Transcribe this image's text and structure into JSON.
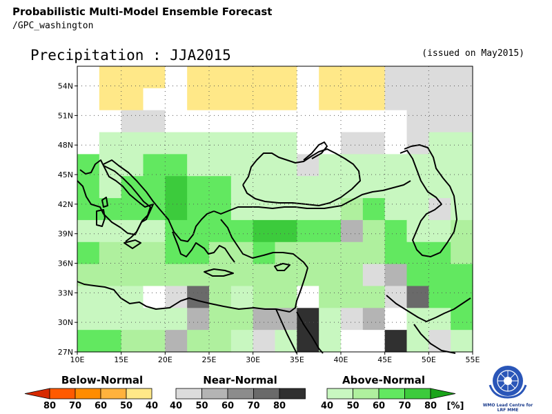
{
  "header": {
    "title": "Probabilistic Multi-Model Ensemble Forecast",
    "subtitle": "/GPC_washington"
  },
  "map": {
    "title": "Precipitation : JJA2015",
    "issued": "(issued on May2015)",
    "lon_min": 10,
    "lon_max": 55,
    "lat_min": 27,
    "lat_max": 56,
    "lon_ticks": [
      "10E",
      "15E",
      "20E",
      "25E",
      "30E",
      "35E",
      "40E",
      "45E",
      "50E",
      "55E"
    ],
    "lat_ticks": [
      "54N",
      "51N",
      "48N",
      "45N",
      "42N",
      "39N",
      "36N",
      "33N",
      "30N",
      "27N"
    ],
    "cell_cols": 18,
    "cell_rows": 13,
    "palette": {
      "0": "#ffffff",
      "Y": "#ffe888",
      "N": "#dcdcdc",
      "n": "#b4b4b4",
      "d": "#6a6a6a",
      "k": "#303030",
      "a": "#c8f7c0",
      "b": "#aff09e",
      "c": "#62e860",
      "e": "#3ccb3c"
    },
    "grid": [
      "0YYY0YYYYY0YYYNNNN",
      "0YY00YYYYY0YYYNNNN",
      "00NN00000000000NNN",
      "0aaaaaaaaa00NN0Naa",
      "caaccaaaaaNaaaaaaa",
      "cacceccaaaaaaaaaaa",
      "cccceccaaaaabcaaNa",
      "aaaacccceeccnbcaab",
      "cbbbccbbcbbbbbcccb",
      "bbbbbbbbbbbbbNnccc",
      "aaa0Ndbabb0bbbNdcc",
      "aaaaanbbnnkaNn0aac",
      "ccbbnbbaNaka00kaNa"
    ],
    "legend": {
      "below_title": "Below-Normal",
      "near_title": "Near-Normal",
      "above_title": "Above-Normal",
      "below_labels": [
        "80",
        "70",
        "60",
        "50",
        "40"
      ],
      "near_labels": [
        "40",
        "50",
        "60",
        "70",
        "80"
      ],
      "above_labels": [
        "40",
        "50",
        "60",
        "70",
        "80"
      ],
      "unit": "[%]",
      "below_colors": [
        "#d72a00",
        "#ff5a00",
        "#ff8c00",
        "#ffb23c",
        "#ffe888"
      ],
      "near_colors": [
        "#dcdcdc",
        "#b4b4b4",
        "#8c8c8c",
        "#6a6a6a",
        "#303030"
      ],
      "above_colors": [
        "#c8f7c0",
        "#aff09e",
        "#62e860",
        "#3ccb3c",
        "#1aa41a"
      ]
    }
  },
  "logo": {
    "text_line1": "WMO Lead Centre for",
    "text_line2": "LRF MME"
  }
}
